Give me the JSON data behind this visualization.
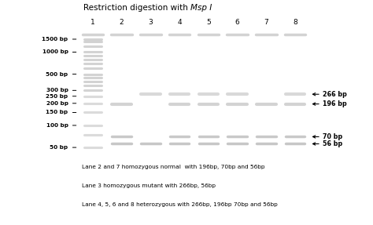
{
  "title_plain": "Restriction digestion with ",
  "title_italic": "Msp I",
  "gel_bg": "#525252",
  "band_color_bright": "#d8d8d8",
  "band_color_dim": "#aaaaaa",
  "lane_labels": [
    "1",
    "2",
    "3",
    "4",
    "5",
    "6",
    "7",
    "8"
  ],
  "left_markers": {
    "labels": [
      "1500 bp",
      "1000 bp",
      "500 bp",
      "300 bp",
      "250 bp",
      "200 bp",
      "150 bp",
      "100 bp",
      "50 bp"
    ],
    "positions": [
      1500,
      1000,
      500,
      300,
      250,
      200,
      150,
      100,
      50
    ]
  },
  "right_labels": {
    "labels": [
      "266 bp",
      "196 bp",
      "70 bp",
      "56 bp"
    ],
    "positions": [
      266,
      196,
      70,
      56
    ]
  },
  "caption_lines": [
    "Lane 2 and 7 homozygous normal  with 196bp, 70bp and 56bp",
    "Lane 3 homozygous mutant with 266bp, 56bp",
    "Lane 4, 5, 6 and 8 heterozygous with 266bp, 196bp 70bp and 56bp"
  ],
  "lane_bands": {
    "1": [
      1500,
      1400,
      1200,
      1000,
      900,
      800,
      700,
      600,
      500,
      450,
      400,
      350,
      300,
      250,
      200,
      150,
      100,
      75,
      50
    ],
    "2": [
      196,
      70,
      56
    ],
    "3": [
      266,
      56
    ],
    "4": [
      266,
      196,
      70,
      56
    ],
    "5": [
      266,
      196,
      70,
      56
    ],
    "6": [
      266,
      196,
      70,
      56
    ],
    "7": [
      196,
      70,
      56
    ],
    "8": [
      266,
      196,
      70,
      56
    ]
  },
  "figsize": [
    4.74,
    2.87
  ],
  "dpi": 100
}
